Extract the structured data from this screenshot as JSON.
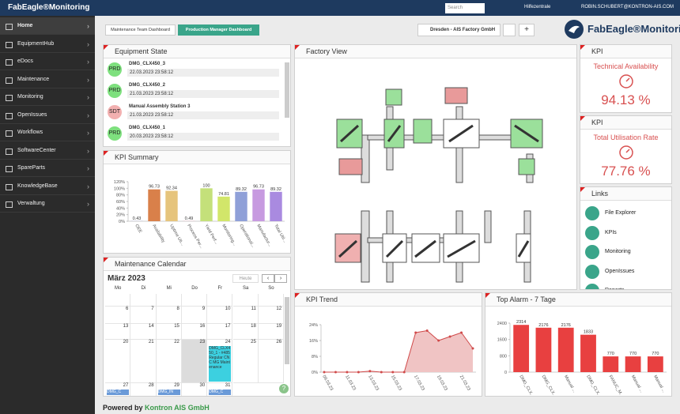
{
  "header": {
    "title": "FabEagle®Monitoring",
    "search_placeholder": "Search",
    "help": "Hilfezentrale",
    "user": "ROBIN.SCHUBERT@KONTRON-AIS.COM"
  },
  "sidebar": [
    "Home",
    "EquipmentHub",
    "eDocs",
    "Maintenance",
    "Monitoring",
    "OpenIssues",
    "Workflows",
    "SoftwareCenter",
    "SpareParts",
    "KnowledgeBase",
    "Verwaltung"
  ],
  "tabs": [
    "Maintenance Team Dashboard",
    "Production Manager Dashboard"
  ],
  "location": "Dresden - AIS Factory GmbH",
  "logo": "FabEagle®Monitoring",
  "equipment_state": {
    "title": "Equipment State",
    "items": [
      {
        "state": "PRD",
        "name": "DMG_CLX450_3",
        "time": "22.03.2023 23:58:12"
      },
      {
        "state": "PRD",
        "name": "DMG_CLX450_2",
        "time": "21.03.2023 23:58:12"
      },
      {
        "state": "SDT",
        "name": "Manual Assembly Station 3",
        "time": "21.03.2023 23:58:12"
      },
      {
        "state": "PRD",
        "name": "DMG_CLX450_1",
        "time": "20.03.2023 23:58:12"
      }
    ]
  },
  "factory_view": {
    "title": "Factory View"
  },
  "kpi_cards": [
    {
      "title": "KPI",
      "name": "Technical Availability",
      "value": "94.13 %"
    },
    {
      "title": "KPI",
      "name": "Total Utilisation Rate",
      "value": "77.76 %"
    }
  ],
  "links": {
    "title": "Links",
    "items": [
      "File Explorer",
      "KPIs",
      "Monitoring",
      "OpenIssues",
      "Reports"
    ]
  },
  "calendar": {
    "title": "Maintenance Calendar",
    "month": "März 2023",
    "today": "Heute",
    "weekdays": [
      "Mo",
      "Di",
      "Mi",
      "Do",
      "Fr",
      "Sa",
      "So"
    ],
    "weeks": [
      [
        "6",
        "7",
        "8",
        "9",
        "10",
        "11",
        "12"
      ],
      [
        "13",
        "14",
        "15",
        "16",
        "17",
        "18",
        "19"
      ],
      [
        "20",
        "21",
        "22",
        "23",
        "24",
        "25",
        "26"
      ],
      [
        "27",
        "28",
        "29",
        "30",
        "31"
      ]
    ],
    "events": [
      "DMG_CLX450_1 - #485 Regular CNC MG Maintenance",
      "DMG_C",
      "DMG_IN",
      "DMG_C"
    ]
  },
  "chart_data": [
    {
      "type": "bar",
      "title": "KPI Summary",
      "categories": [
        "OEE",
        "Availability",
        "Uptime Uti...",
        "Process Per...",
        "Yield Perf...",
        "Monitoring...",
        "Operational...",
        "Manufactur...",
        "Total Util..."
      ],
      "values": [
        0.43,
        96.73,
        92.34,
        0.49,
        100,
        74.81,
        89.32,
        96.73,
        89.32
      ],
      "colors": [
        "#9a9ad0",
        "#d9804a",
        "#e6c47c",
        "#e8a0b0",
        "#c4e07a",
        "#d2e66a",
        "#8fa0d8",
        "#c79ae0",
        "#a98ae0"
      ],
      "ylim": [
        0,
        120
      ],
      "yticks": [
        {
          "value": 0,
          "label": "0%"
        },
        {
          "value": 20,
          "label": "20%"
        },
        {
          "value": 40,
          "label": "40%"
        },
        {
          "value": 60,
          "label": "60%"
        },
        {
          "value": 80,
          "label": "80%"
        },
        {
          "value": 100,
          "label": "100%"
        },
        {
          "value": 120,
          "label": "120%"
        }
      ]
    },
    {
      "type": "area",
      "title": "KPI Trend",
      "categories": [
        "09.03.23",
        null,
        "11.03.23",
        null,
        "13.03.23",
        null,
        "15.03.23",
        null,
        "17.03.23",
        null,
        "19.03.23",
        null,
        "21.03.23",
        null
      ],
      "values": [
        0,
        0,
        0,
        0,
        0.5,
        0,
        0,
        0,
        20,
        21,
        16,
        18,
        20,
        12
      ],
      "color": "#d04a4a",
      "fill": "#f0c4c4",
      "ylim": [
        0,
        24
      ],
      "yticks": [
        {
          "value": 0,
          "label": "0%"
        },
        {
          "value": 8,
          "label": "8%"
        },
        {
          "value": 16,
          "label": "16%"
        },
        {
          "value": 24,
          "label": "24%"
        }
      ]
    },
    {
      "type": "bar",
      "title": "Top Alarm - 7 Tage",
      "categories": [
        "DMG_CLX...",
        "DMG_CLX...",
        "Manual ...",
        "DMG_CLX...",
        "FANUC_M...",
        "Manual ...",
        "Manual ..."
      ],
      "values": [
        2314,
        2176,
        2176,
        1833,
        770,
        770,
        770
      ],
      "color": "#e84040",
      "ylim": [
        0,
        2400
      ],
      "yticks": [
        0,
        800,
        1600,
        2400
      ]
    }
  ],
  "footer": {
    "prefix": "Powered by",
    "company": "Kontron AIS GmbH"
  }
}
